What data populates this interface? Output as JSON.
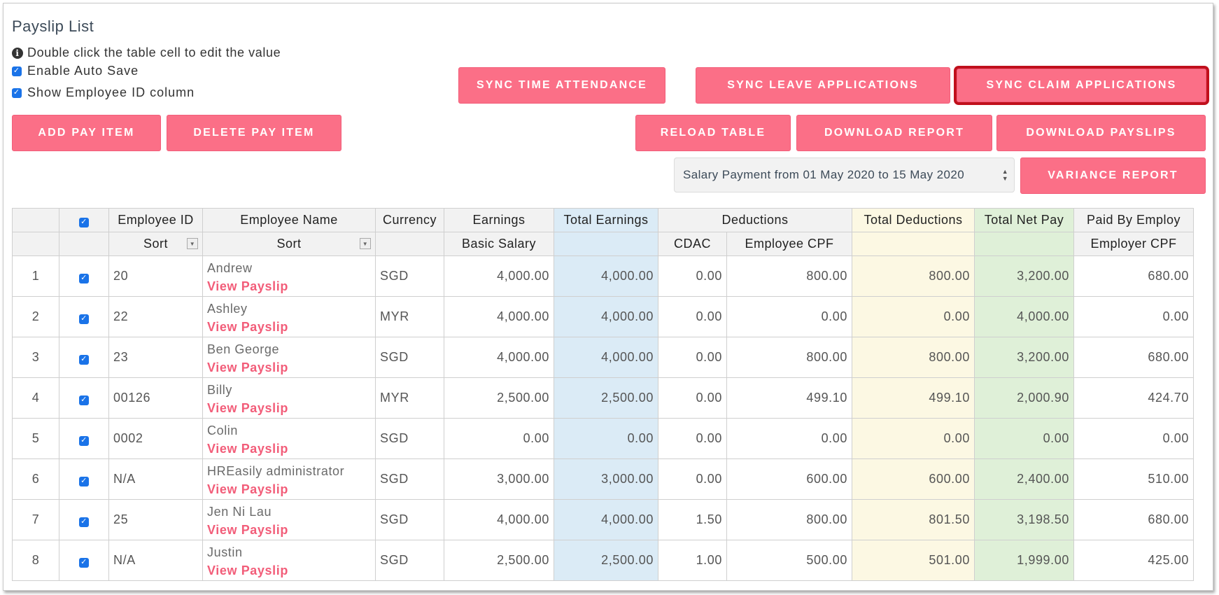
{
  "page": {
    "title": "Payslip List",
    "hint": "Double click the table cell to edit the value"
  },
  "options": {
    "auto_save": "Enable Auto Save",
    "show_id": "Show Employee ID column"
  },
  "buttons": {
    "sync_time": "SYNC TIME ATTENDANCE",
    "sync_leave": "SYNC LEAVE APPLICATIONS",
    "sync_claim": "SYNC CLAIM APPLICATIONS",
    "add_pay_item": "ADD PAY ITEM",
    "delete_pay_item": "DELETE PAY ITEM",
    "reload_table": "RELOAD TABLE",
    "download_report": "DOWNLOAD REPORT",
    "download_payslips": "DOWNLOAD PAYSLIPS",
    "variance_report": "VARIANCE REPORT"
  },
  "period_select": {
    "value": "Salary Payment from 01 May 2020 to 15 May 2020"
  },
  "table": {
    "headers": {
      "employee_id": "Employee ID",
      "employee_name": "Employee Name",
      "currency": "Currency",
      "earnings": "Earnings",
      "total_earnings": "Total Earnings",
      "deductions": "Deductions",
      "total_deductions": "Total Deductions",
      "total_net_pay": "Total Net Pay",
      "paid_by_employer": "Paid By Employ"
    },
    "subheaders": {
      "sort_id": "Sort",
      "sort_name": "Sort",
      "basic_salary": "Basic Salary",
      "cdac": "CDAC",
      "employee_cpf": "Employee CPF",
      "employer_cpf": "Employer CPF"
    },
    "link_label": "View Payslip",
    "rows": [
      {
        "n": "1",
        "id": "20",
        "name": "Andrew",
        "currency": "SGD",
        "basic": "4,000.00",
        "total_earn": "4,000.00",
        "cdac": "0.00",
        "emp_cpf": "800.00",
        "total_ded": "800.00",
        "net": "3,200.00",
        "er_cpf": "680.00"
      },
      {
        "n": "2",
        "id": "22",
        "name": "Ashley",
        "currency": "MYR",
        "basic": "4,000.00",
        "total_earn": "4,000.00",
        "cdac": "0.00",
        "emp_cpf": "0.00",
        "total_ded": "0.00",
        "net": "4,000.00",
        "er_cpf": "0.00"
      },
      {
        "n": "3",
        "id": "23",
        "name": "Ben George",
        "currency": "SGD",
        "basic": "4,000.00",
        "total_earn": "4,000.00",
        "cdac": "0.00",
        "emp_cpf": "800.00",
        "total_ded": "800.00",
        "net": "3,200.00",
        "er_cpf": "680.00"
      },
      {
        "n": "4",
        "id": "00126",
        "name": "Billy",
        "currency": "MYR",
        "basic": "2,500.00",
        "total_earn": "2,500.00",
        "cdac": "0.00",
        "emp_cpf": "499.10",
        "total_ded": "499.10",
        "net": "2,000.90",
        "er_cpf": "424.70"
      },
      {
        "n": "5",
        "id": "0002",
        "name": "Colin",
        "currency": "SGD",
        "basic": "0.00",
        "total_earn": "0.00",
        "cdac": "0.00",
        "emp_cpf": "0.00",
        "total_ded": "0.00",
        "net": "0.00",
        "er_cpf": "0.00"
      },
      {
        "n": "6",
        "id": "N/A",
        "name": "HREasily administrator",
        "currency": "SGD",
        "basic": "3,000.00",
        "total_earn": "3,000.00",
        "cdac": "0.00",
        "emp_cpf": "600.00",
        "total_ded": "600.00",
        "net": "2,400.00",
        "er_cpf": "510.00"
      },
      {
        "n": "7",
        "id": "25",
        "name": "Jen Ni Lau",
        "currency": "SGD",
        "basic": "4,000.00",
        "total_earn": "4,000.00",
        "cdac": "1.50",
        "emp_cpf": "800.00",
        "total_ded": "801.50",
        "net": "3,198.50",
        "er_cpf": "680.00"
      },
      {
        "n": "8",
        "id": "N/A",
        "name": "Justin",
        "currency": "SGD",
        "basic": "2,500.00",
        "total_earn": "2,500.00",
        "cdac": "1.00",
        "emp_cpf": "500.00",
        "total_ded": "501.00",
        "net": "1,999.00",
        "er_cpf": "425.00"
      }
    ]
  }
}
